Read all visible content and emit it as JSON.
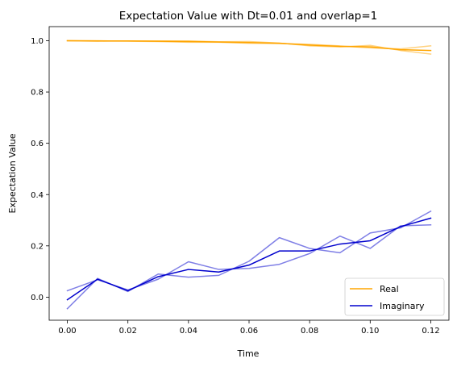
{
  "chart_data": {
    "type": "line",
    "title": "Expectation Value with Dt=0.01 and overlap=1",
    "xlabel": "Time",
    "ylabel": "Expectation Value",
    "xlim": [
      -0.006,
      0.126
    ],
    "ylim": [
      -0.09,
      1.055
    ],
    "xticks": [
      0.0,
      0.02,
      0.04,
      0.06,
      0.08,
      0.1,
      0.12
    ],
    "xtick_labels": [
      "0.00",
      "0.02",
      "0.04",
      "0.06",
      "0.08",
      "0.10",
      "0.12"
    ],
    "yticks": [
      0.0,
      0.2,
      0.4,
      0.6,
      0.8,
      1.0
    ],
    "ytick_labels": [
      "0.0",
      "0.2",
      "0.4",
      "0.6",
      "0.8",
      "1.0"
    ],
    "grid": false,
    "legend_position": "lower-right",
    "x": [
      0.0,
      0.01,
      0.02,
      0.03,
      0.04,
      0.05,
      0.06,
      0.07,
      0.08,
      0.09,
      0.1,
      0.11,
      0.12
    ],
    "series": [
      {
        "name": "Real",
        "role": "mean",
        "color": "#FFA500",
        "alpha": 1.0,
        "legend": true,
        "values": [
          1.0,
          0.999,
          0.999,
          0.998,
          0.997,
          0.995,
          0.993,
          0.99,
          0.983,
          0.978,
          0.976,
          0.965,
          0.962
        ]
      },
      {
        "name": "",
        "role": "trial",
        "color": "#FFA500",
        "alpha": 0.5,
        "legend": false,
        "values": [
          1.0,
          0.998,
          0.999,
          0.999,
          0.999,
          0.996,
          0.997,
          0.991,
          0.98,
          0.976,
          0.982,
          0.962,
          0.948
        ]
      },
      {
        "name": "",
        "role": "trial",
        "color": "#FFA500",
        "alpha": 0.5,
        "legend": false,
        "values": [
          1.0,
          1.0,
          0.998,
          0.997,
          0.994,
          0.994,
          0.99,
          0.989,
          0.986,
          0.98,
          0.972,
          0.968,
          0.98
        ]
      },
      {
        "name": "Imaginary",
        "role": "mean",
        "color": "#0000CD",
        "alpha": 1.0,
        "legend": true,
        "values": [
          -0.01,
          0.07,
          0.025,
          0.08,
          0.108,
          0.098,
          0.125,
          0.18,
          0.18,
          0.207,
          0.22,
          0.275,
          0.308
        ]
      },
      {
        "name": "",
        "role": "trial",
        "color": "#0000CD",
        "alpha": 0.5,
        "legend": false,
        "values": [
          -0.045,
          0.073,
          0.022,
          0.09,
          0.078,
          0.085,
          0.14,
          0.232,
          0.19,
          0.173,
          0.25,
          0.27,
          0.335
        ]
      },
      {
        "name": "",
        "role": "trial",
        "color": "#0000CD",
        "alpha": 0.5,
        "legend": false,
        "values": [
          0.025,
          0.068,
          0.028,
          0.07,
          0.138,
          0.108,
          0.112,
          0.128,
          0.17,
          0.238,
          0.19,
          0.278,
          0.282
        ]
      }
    ]
  }
}
